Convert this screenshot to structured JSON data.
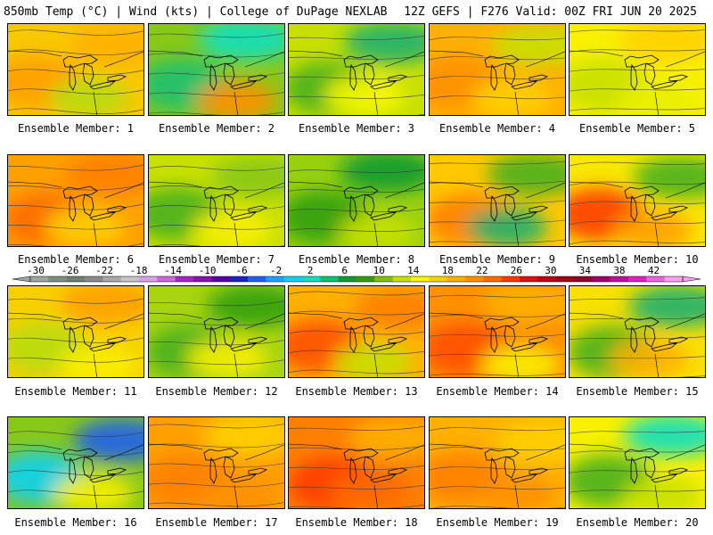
{
  "header": {
    "left_title": "850mb Temp (°C) | Wind (kts) | College of DuPage NEXLAB",
    "right_title": "12Z GEFS | F276 Valid: 00Z FRI JUN 20 2025"
  },
  "colorbar": {
    "tick_labels": [
      "-30",
      "-26",
      "-22",
      "-18",
      "-14",
      "-10",
      "-6",
      "-2",
      "2",
      "6",
      "10",
      "14",
      "18",
      "22",
      "26",
      "30",
      "34",
      "38",
      "42"
    ],
    "colors": [
      "#9aa79a",
      "#7f8f80",
      "#6f7f70",
      "#8a8a8a",
      "#a9a9a9",
      "#c6c6c6",
      "#d9a2e8",
      "#cc66dd",
      "#aa22cc",
      "#8a10b8",
      "#5a00aa",
      "#2020c8",
      "#2060ee",
      "#20a0ff",
      "#10d0f0",
      "#10e0c0",
      "#10c070",
      "#109a30",
      "#30a010",
      "#80c010",
      "#c8e000",
      "#f8f800",
      "#ffd000",
      "#ffb000",
      "#ff9000",
      "#ff6a00",
      "#ff3a00",
      "#e01010",
      "#c00010",
      "#a00018",
      "#900028",
      "#a0006a",
      "#c0109a",
      "#e020c0",
      "#f060e0",
      "#f8a0f0"
    ]
  },
  "members": [
    {
      "label": "Ensemble Member: 1",
      "base": "#f8c800",
      "blobs": [
        {
          "c": "#ffa000"
        },
        {
          "c": "#ffb000"
        },
        {
          "c": "#b8dc10"
        }
      ]
    },
    {
      "label": "Ensemble Member: 2",
      "base": "#88c818",
      "blobs": [
        {
          "c": "#20c070"
        },
        {
          "c": "#10e0c0"
        },
        {
          "c": "#ff9000"
        }
      ]
    },
    {
      "label": "Ensemble Member: 3",
      "base": "#c8e000",
      "blobs": [
        {
          "c": "#48b020"
        },
        {
          "c": "#20b070"
        },
        {
          "c": "#f8f800"
        }
      ]
    },
    {
      "label": "Ensemble Member: 4",
      "base": "#ffb000",
      "blobs": [
        {
          "c": "#ff9000"
        },
        {
          "c": "#c8e000"
        },
        {
          "c": "#ffd000"
        }
      ]
    },
    {
      "label": "Ensemble Member: 5",
      "base": "#f8f000",
      "blobs": [
        {
          "c": "#c8e000"
        },
        {
          "c": "#ffd000"
        },
        {
          "c": "#e8f000"
        }
      ]
    },
    {
      "label": "Ensemble Member: 6",
      "base": "#ffa000",
      "blobs": [
        {
          "c": "#ff6a00"
        },
        {
          "c": "#ff8000"
        },
        {
          "c": "#ffd000"
        }
      ]
    },
    {
      "label": "Ensemble Member: 7",
      "base": "#c8e000",
      "blobs": [
        {
          "c": "#48b020"
        },
        {
          "c": "#88c818"
        },
        {
          "c": "#f8f000"
        }
      ]
    },
    {
      "label": "Ensemble Member: 8",
      "base": "#98d010",
      "blobs": [
        {
          "c": "#30a010"
        },
        {
          "c": "#109a30"
        },
        {
          "c": "#c8e000"
        }
      ]
    },
    {
      "label": "Ensemble Member: 9",
      "base": "#ffc800",
      "blobs": [
        {
          "c": "#ff8000"
        },
        {
          "c": "#48b020"
        },
        {
          "c": "#20b070"
        }
      ]
    },
    {
      "label": "Ensemble Member: 10",
      "base": "#f8e800",
      "blobs": [
        {
          "c": "#ff3a00"
        },
        {
          "c": "#48b020"
        },
        {
          "c": "#ffa000"
        }
      ]
    },
    {
      "label": "Ensemble Member: 11",
      "base": "#f8d000",
      "blobs": [
        {
          "c": "#b8dc10"
        },
        {
          "c": "#ffa000"
        },
        {
          "c": "#f8f000"
        }
      ]
    },
    {
      "label": "Ensemble Member: 12",
      "base": "#a8d410",
      "blobs": [
        {
          "c": "#48b020"
        },
        {
          "c": "#30a010"
        },
        {
          "c": "#f8f000"
        }
      ]
    },
    {
      "label": "Ensemble Member: 13",
      "base": "#ffb000",
      "blobs": [
        {
          "c": "#ff5000"
        },
        {
          "c": "#ff8000"
        },
        {
          "c": "#c8e000"
        }
      ]
    },
    {
      "label": "Ensemble Member: 14",
      "base": "#ff9000",
      "blobs": [
        {
          "c": "#ff5000"
        },
        {
          "c": "#ffb000"
        },
        {
          "c": "#f8f000"
        }
      ]
    },
    {
      "label": "Ensemble Member: 15",
      "base": "#f8e000",
      "blobs": [
        {
          "c": "#48b020"
        },
        {
          "c": "#20b070"
        },
        {
          "c": "#ffb000"
        }
      ]
    },
    {
      "label": "Ensemble Member: 16",
      "base": "#88c818",
      "blobs": [
        {
          "c": "#10d0f0"
        },
        {
          "c": "#2060ee"
        },
        {
          "c": "#f8f000"
        }
      ]
    },
    {
      "label": "Ensemble Member: 17",
      "base": "#ffa000",
      "blobs": [
        {
          "c": "#ff8000"
        },
        {
          "c": "#ffd000"
        },
        {
          "c": "#ff9000"
        }
      ]
    },
    {
      "label": "Ensemble Member: 18",
      "base": "#ff8000",
      "blobs": [
        {
          "c": "#ff3a00"
        },
        {
          "c": "#ffb000"
        },
        {
          "c": "#ff6a00"
        }
      ]
    },
    {
      "label": "Ensemble Member: 19",
      "base": "#ffb000",
      "blobs": [
        {
          "c": "#ff8000"
        },
        {
          "c": "#ffd000"
        },
        {
          "c": "#ff9000"
        }
      ]
    },
    {
      "label": "Ensemble Member: 20",
      "base": "#f8f000",
      "blobs": [
        {
          "c": "#48b020"
        },
        {
          "c": "#10e0c0"
        },
        {
          "c": "#c8e000"
        }
      ]
    }
  ]
}
